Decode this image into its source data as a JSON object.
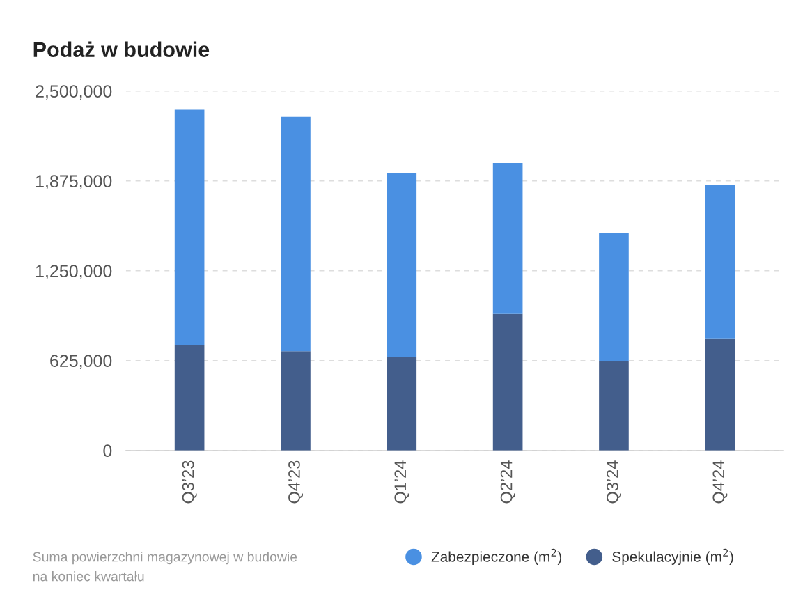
{
  "chart_data": {
    "type": "bar",
    "title": "Podaż w budowie",
    "stacked": true,
    "categories": [
      "Q3’23",
      "Q4’23",
      "Q1’24",
      "Q2’24",
      "Q3’24",
      "Q4’24"
    ],
    "series": [
      {
        "name": "Spekulacyjnie (m$^{2}$)",
        "color": "#435e8c",
        "values": [
          730000,
          690000,
          650000,
          950000,
          620000,
          780000
        ]
      },
      {
        "name": "Zabezpieczone (m$^{2}$)",
        "color": "#4a90e2",
        "values": [
          1640000,
          1630000,
          1280000,
          1050000,
          890000,
          1070000
        ]
      }
    ],
    "ylim": [
      0,
      2500000
    ],
    "yticks": [
      {
        "value": 0,
        "label": "0"
      },
      {
        "value": 625000,
        "label": "625,000"
      },
      {
        "value": 1250000,
        "label": "1,250,000"
      },
      {
        "value": 1875000,
        "label": "1,875,000"
      },
      {
        "value": 2500000,
        "label": "2,500,000"
      }
    ],
    "grid": "y",
    "legend": "bottom right",
    "annotations": [
      "Suma powierzchni magazynowej w budowie\nna koniec kwartału"
    ]
  }
}
